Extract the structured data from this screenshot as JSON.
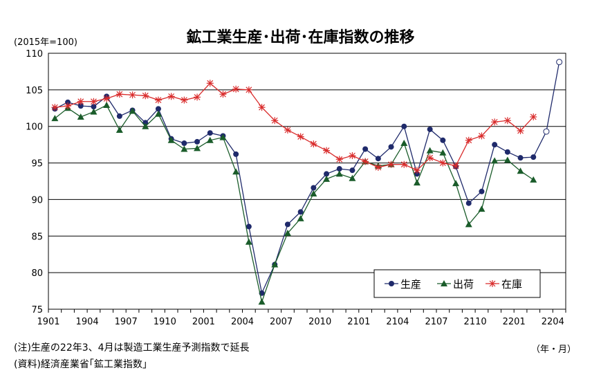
{
  "chart_data": {
    "type": "line",
    "title": "鉱工業生産･出荷･在庫指数の推移",
    "unit": "(2015年=100)",
    "xaxis_unit": "（年・月）",
    "ylim": [
      75,
      110
    ],
    "yticks": [
      75,
      80,
      85,
      90,
      95,
      100,
      105,
      110
    ],
    "x_tick_labels": [
      "1901",
      "1904",
      "1907",
      "1910",
      "2001",
      "2004",
      "2007",
      "2010",
      "2101",
      "2104",
      "2107",
      "2110",
      "2201",
      "2204"
    ],
    "n_points": 40,
    "legend_position": "bottom-right",
    "series": [
      {
        "name": "生産",
        "color": "#1f2a6b",
        "marker": "circle",
        "values": [
          102.4,
          103.3,
          102.8,
          102.7,
          104.1,
          101.4,
          102.2,
          100.5,
          102.4,
          98.3,
          97.7,
          97.9,
          99.1,
          98.7,
          96.2,
          86.3,
          77.2,
          81.1,
          86.6,
          88.3,
          91.6,
          93.5,
          94.2,
          94.0,
          96.9,
          95.6,
          97.2,
          100.0,
          93.5,
          99.6,
          98.1,
          94.5,
          89.5,
          91.1,
          97.5,
          96.5,
          95.7,
          95.8,
          null,
          null
        ],
        "forecast": [
          {
            "index": 38,
            "value": 99.3
          },
          {
            "index": 39,
            "value": 108.8
          }
        ]
      },
      {
        "name": "出荷",
        "color": "#1a5c2a",
        "marker": "triangle",
        "values": [
          101.1,
          102.5,
          101.3,
          102.0,
          102.9,
          99.5,
          102.1,
          100.0,
          101.7,
          98.1,
          96.9,
          97.0,
          98.1,
          98.5,
          93.8,
          84.2,
          76.0,
          81.1,
          85.4,
          87.4,
          90.8,
          92.8,
          93.5,
          92.9,
          95.2,
          94.6,
          94.8,
          97.7,
          92.3,
          96.7,
          96.4,
          92.2,
          86.6,
          88.7,
          95.3,
          95.4,
          93.9,
          92.7,
          null,
          null
        ]
      },
      {
        "name": "在庫",
        "color": "#d92b2b",
        "marker": "x",
        "values": [
          102.6,
          102.8,
          103.4,
          103.4,
          103.8,
          104.4,
          104.3,
          104.2,
          103.6,
          104.1,
          103.6,
          104.0,
          105.9,
          104.4,
          105.1,
          105.0,
          102.6,
          100.8,
          99.5,
          98.6,
          97.6,
          96.7,
          95.5,
          96.0,
          95.2,
          94.4,
          94.8,
          94.8,
          94.0,
          95.7,
          95.0,
          94.6,
          98.1,
          98.7,
          100.6,
          100.8,
          99.4,
          101.3,
          null,
          null
        ]
      }
    ]
  },
  "notes": {
    "line1": "(注)生産の22年3、4月は製造工業生産予測指数で延長",
    "line2": "(資料)経済産業省｢鉱工業指数｣"
  }
}
